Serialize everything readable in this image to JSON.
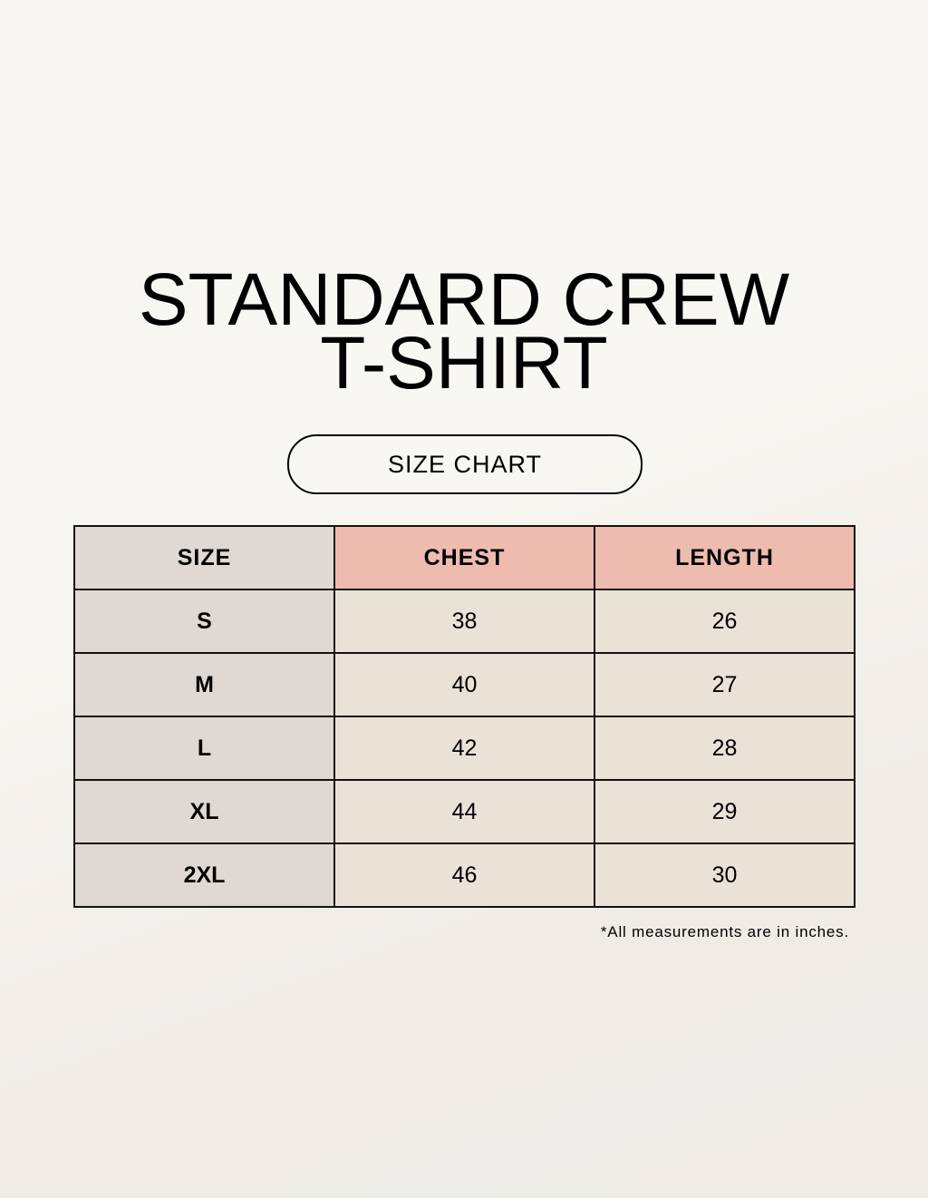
{
  "title": {
    "line1": "STANDARD CREW",
    "line2": "T-SHIRT"
  },
  "subtitle_pill": "SIZE CHART",
  "table": {
    "headers": [
      "SIZE",
      "CHEST",
      "LENGTH"
    ],
    "rows": [
      [
        "S",
        "38",
        "26"
      ],
      [
        "M",
        "40",
        "27"
      ],
      [
        "L",
        "42",
        "28"
      ],
      [
        "XL",
        "44",
        "29"
      ],
      [
        "2XL",
        "46",
        "30"
      ]
    ]
  },
  "footnote": "*All measurements are in inches.",
  "colors": {
    "header_accent": "#eebcae",
    "size_column": "#e0d8d2",
    "value_cells": "#ebe2d7",
    "background": "#f8f6f0"
  }
}
